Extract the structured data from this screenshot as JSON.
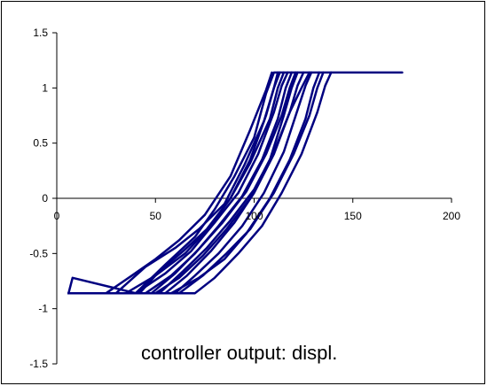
{
  "chart_data": {
    "type": "line",
    "title": "",
    "xlabel": "",
    "ylabel": "",
    "annotation": "controller output: displ.",
    "xlim": [
      0,
      200
    ],
    "ylim": [
      -1.5,
      1.5
    ],
    "xticks": [
      0,
      50,
      100,
      150,
      200
    ],
    "yticks": [
      -1.5,
      -1,
      -0.5,
      0,
      0.5,
      1,
      1.5
    ],
    "xtick_labels": [
      "0",
      "50",
      "100",
      "150",
      "200"
    ],
    "ytick_labels": [
      "-1.5",
      "-1",
      "-0.5",
      "0",
      "0.5",
      "1",
      "1.5"
    ],
    "x_axis_at_y": 0,
    "grid": false,
    "legend": "none",
    "line_color": "#000080",
    "series": [
      {
        "x": [
          6,
          8,
          40,
          55,
          70,
          80,
          90,
          100,
          106,
          110,
          175
        ],
        "y": [
          -0.86,
          -0.72,
          -0.86,
          -0.6,
          -0.35,
          -0.1,
          0.2,
          0.55,
          0.95,
          1.14,
          1.14
        ]
      },
      {
        "x": [
          6,
          30,
          45,
          60,
          72,
          85,
          95,
          105,
          110,
          113
        ],
        "y": [
          -0.86,
          -0.86,
          -0.62,
          -0.45,
          -0.28,
          -0.05,
          0.3,
          0.7,
          1.0,
          1.14
        ]
      },
      {
        "x": [
          6,
          35,
          50,
          65,
          78,
          88,
          98,
          108,
          112,
          115
        ],
        "y": [
          -0.86,
          -0.86,
          -0.7,
          -0.5,
          -0.25,
          0.0,
          0.32,
          0.72,
          1.0,
          1.14
        ]
      },
      {
        "x": [
          6,
          40,
          55,
          68,
          80,
          92,
          102,
          110,
          114,
          117
        ],
        "y": [
          -0.86,
          -0.86,
          -0.68,
          -0.48,
          -0.22,
          0.05,
          0.4,
          0.78,
          1.02,
          1.14
        ]
      },
      {
        "x": [
          6,
          45,
          58,
          70,
          82,
          94,
          104,
          112,
          116,
          119
        ],
        "y": [
          -0.86,
          -0.86,
          -0.7,
          -0.5,
          -0.25,
          0.02,
          0.35,
          0.72,
          1.0,
          1.14
        ]
      },
      {
        "x": [
          6,
          50,
          62,
          74,
          86,
          98,
          108,
          115,
          119,
          122
        ],
        "y": [
          -0.86,
          -0.86,
          -0.72,
          -0.52,
          -0.28,
          0.0,
          0.35,
          0.75,
          1.0,
          1.14
        ]
      },
      {
        "x": [
          6,
          55,
          66,
          78,
          90,
          100,
          110,
          118,
          122,
          125
        ],
        "y": [
          -0.86,
          -0.86,
          -0.7,
          -0.48,
          -0.22,
          0.05,
          0.4,
          0.78,
          1.02,
          1.14
        ]
      },
      {
        "x": [
          6,
          60,
          70,
          82,
          94,
          105,
          115,
          122,
          126,
          129
        ],
        "y": [
          -0.86,
          -0.86,
          -0.7,
          -0.5,
          -0.25,
          0.05,
          0.42,
          0.8,
          1.02,
          1.14
        ]
      },
      {
        "x": [
          6,
          62,
          74,
          86,
          98,
          110,
          120,
          128,
          132,
          135
        ],
        "y": [
          -0.86,
          -0.86,
          -0.7,
          -0.5,
          -0.28,
          0.05,
          0.4,
          0.75,
          1.0,
          1.14
        ]
      },
      {
        "x": [
          6,
          58,
          72,
          85,
          96,
          108,
          118,
          126,
          130,
          133
        ],
        "y": [
          -0.86,
          -0.86,
          -0.72,
          -0.55,
          -0.32,
          0.0,
          0.35,
          0.72,
          1.0,
          1.14
        ]
      },
      {
        "x": [
          6,
          70,
          80,
          92,
          104,
          114,
          124,
          132,
          136,
          139
        ],
        "y": [
          -0.86,
          -0.86,
          -0.72,
          -0.5,
          -0.25,
          0.05,
          0.4,
          0.78,
          1.02,
          1.14
        ]
      },
      {
        "x": [
          6,
          42,
          52,
          64,
          76,
          88,
          98,
          106,
          110,
          112
        ],
        "y": [
          -0.86,
          -0.86,
          -0.66,
          -0.48,
          -0.28,
          0.0,
          0.35,
          0.75,
          1.0,
          1.14
        ]
      },
      {
        "x": [
          6,
          25,
          38,
          50,
          62,
          75,
          88,
          98,
          106,
          109
        ],
        "y": [
          -0.86,
          -0.86,
          -0.7,
          -0.55,
          -0.38,
          -0.15,
          0.2,
          0.62,
          0.98,
          1.14
        ]
      },
      {
        "x": [
          6,
          52,
          64,
          76,
          88,
          100,
          110,
          118,
          124,
          128
        ],
        "y": [
          -0.86,
          -0.86,
          -0.66,
          -0.45,
          -0.2,
          0.08,
          0.42,
          0.78,
          1.0,
          1.14
        ]
      },
      {
        "x": [
          6,
          48,
          60,
          72,
          84,
          96,
          106,
          114,
          118,
          121
        ],
        "y": [
          -0.86,
          -0.86,
          -0.68,
          -0.46,
          -0.22,
          0.06,
          0.4,
          0.75,
          1.0,
          1.14
        ]
      }
    ]
  }
}
